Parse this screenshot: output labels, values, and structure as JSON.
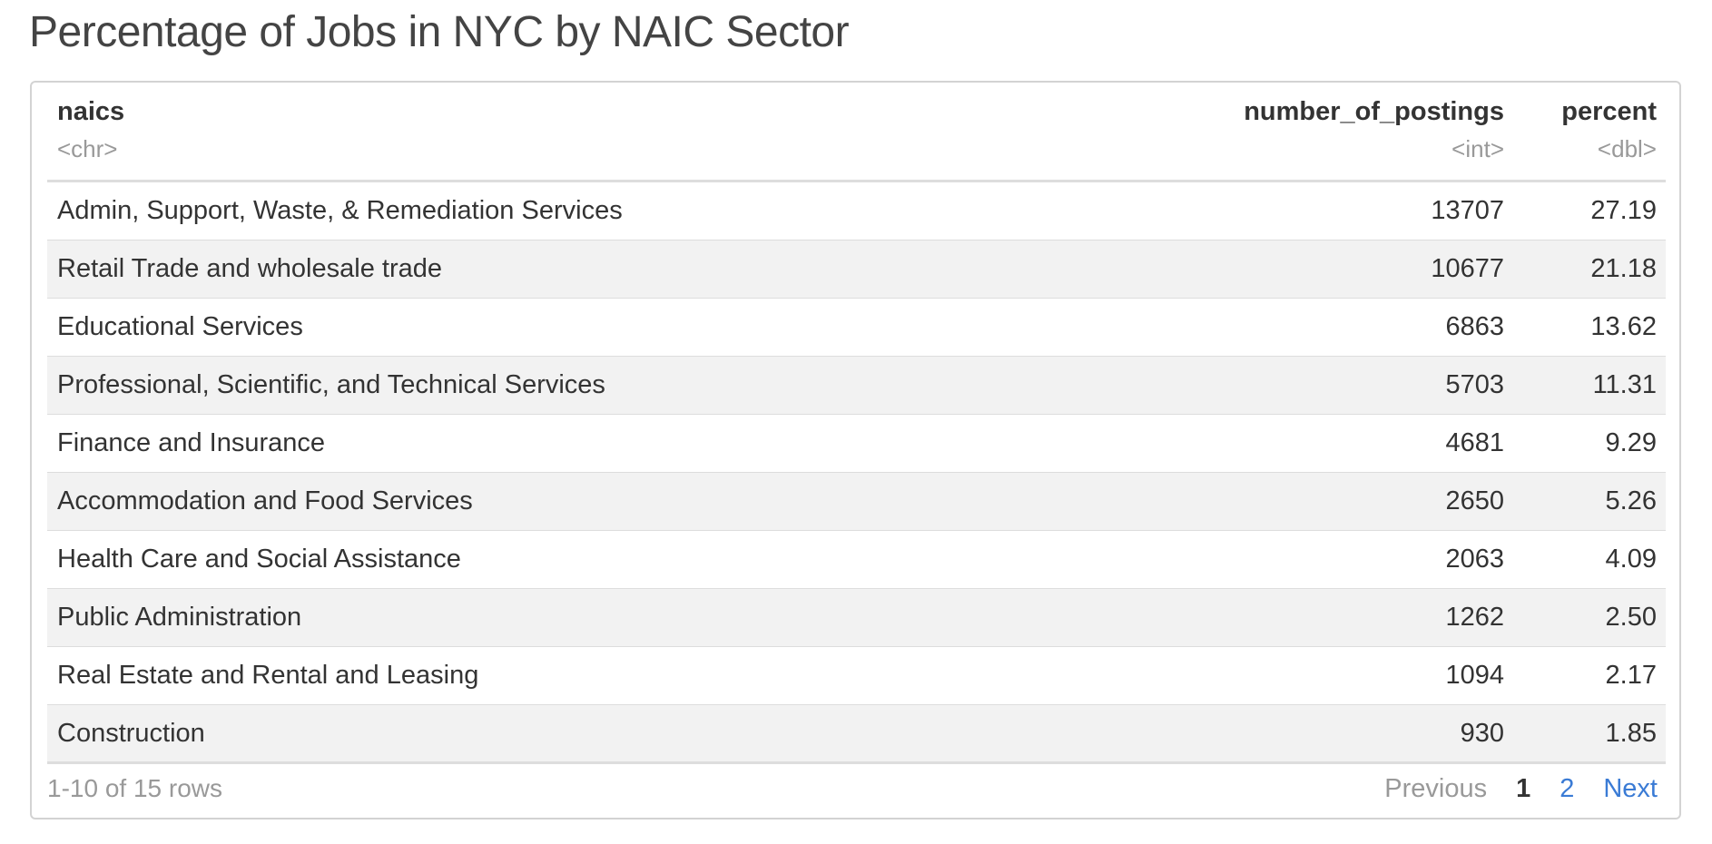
{
  "title": "Percentage of Jobs in NYC by NAIC Sector",
  "table": {
    "columns": [
      {
        "name": "naics",
        "type": "<chr>"
      },
      {
        "name": "number_of_postings",
        "type": "<int>"
      },
      {
        "name": "percent",
        "type": "<dbl>"
      }
    ],
    "rows": [
      [
        "Admin, Support, Waste, & Remediation Services",
        "13707",
        "27.19"
      ],
      [
        "Retail Trade and wholesale trade",
        "10677",
        "21.18"
      ],
      [
        "Educational Services",
        "6863",
        "13.62"
      ],
      [
        "Professional, Scientific, and Technical Services",
        "5703",
        "11.31"
      ],
      [
        "Finance and Insurance",
        "4681",
        "9.29"
      ],
      [
        "Accommodation and Food Services",
        "2650",
        "5.26"
      ],
      [
        "Health Care and Social Assistance",
        "2063",
        "4.09"
      ],
      [
        "Public Administration",
        "1262",
        "2.50"
      ],
      [
        "Real Estate and Rental and Leasing",
        "1094",
        "2.17"
      ],
      [
        "Construction",
        "930",
        "1.85"
      ]
    ]
  },
  "footer": {
    "row_info": "1-10 of 15 rows",
    "previous_label": "Previous",
    "pages": [
      "1",
      "2"
    ],
    "current_page": "1",
    "next_label": "Next"
  },
  "colors": {
    "link": "#3a7bd5",
    "muted": "#999999",
    "stripe": "#f2f2f2"
  }
}
